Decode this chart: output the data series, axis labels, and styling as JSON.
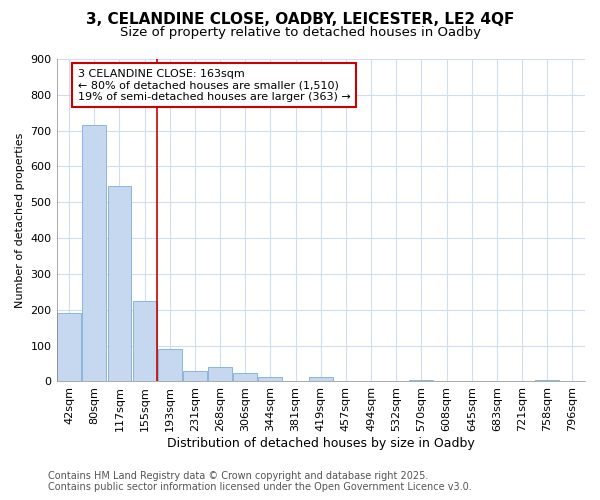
{
  "title_line1": "3, CELANDINE CLOSE, OADBY, LEICESTER, LE2 4QF",
  "title_line2": "Size of property relative to detached houses in Oadby",
  "xlabel": "Distribution of detached houses by size in Oadby",
  "ylabel": "Number of detached properties",
  "categories": [
    "42sqm",
    "80sqm",
    "117sqm",
    "155sqm",
    "193sqm",
    "231sqm",
    "268sqm",
    "306sqm",
    "344sqm",
    "381sqm",
    "419sqm",
    "457sqm",
    "494sqm",
    "532sqm",
    "570sqm",
    "608sqm",
    "645sqm",
    "683sqm",
    "721sqm",
    "758sqm",
    "796sqm"
  ],
  "values": [
    190,
    715,
    545,
    225,
    90,
    30,
    40,
    25,
    12,
    0,
    12,
    0,
    0,
    0,
    5,
    0,
    0,
    0,
    0,
    5,
    0
  ],
  "bar_color": "#c5d8f0",
  "bar_edge_color": "#7aaed6",
  "red_line_x": 3.5,
  "annotation_text": "3 CELANDINE CLOSE: 163sqm\n← 80% of detached houses are smaller (1,510)\n19% of semi-detached houses are larger (363) →",
  "annotation_box_color": "#ffffff",
  "annotation_box_edge": "#cc0000",
  "red_line_color": "#cc0000",
  "ylim": [
    0,
    900
  ],
  "yticks": [
    0,
    100,
    200,
    300,
    400,
    500,
    600,
    700,
    800,
    900
  ],
  "background_color": "#ffffff",
  "plot_bg_color": "#ffffff",
  "grid_color": "#d0ddf0",
  "footer_line1": "Contains HM Land Registry data © Crown copyright and database right 2025.",
  "footer_line2": "Contains public sector information licensed under the Open Government Licence v3.0.",
  "title_fontsize": 11,
  "subtitle_fontsize": 9.5,
  "xlabel_fontsize": 9,
  "ylabel_fontsize": 8,
  "tick_fontsize": 8,
  "annotation_fontsize": 8,
  "footer_fontsize": 7
}
